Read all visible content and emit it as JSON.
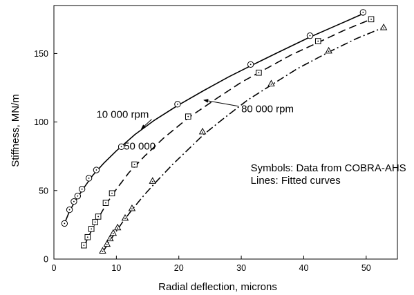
{
  "chart_data": {
    "type": "scatter",
    "title": "",
    "xlabel": "Radial deflection, microns",
    "ylabel": "Stiffness, MN/m",
    "xlim": [
      0,
      55
    ],
    "ylim": [
      0,
      185
    ],
    "xticks": [
      0,
      10,
      20,
      30,
      40,
      50
    ],
    "yticks": [
      0,
      50,
      100,
      150
    ],
    "grid": false,
    "legend": "none",
    "series": [
      {
        "marker": "circle-dot",
        "line": "solid",
        "points": [
          [
            1.7,
            26
          ],
          [
            2.5,
            36
          ],
          [
            3.2,
            42
          ],
          [
            3.8,
            46
          ],
          [
            4.5,
            51
          ],
          [
            5.6,
            59
          ],
          [
            6.8,
            65
          ],
          [
            10.8,
            82
          ],
          [
            19.8,
            113
          ],
          [
            31.5,
            142
          ],
          [
            41.0,
            163
          ],
          [
            49.5,
            180
          ]
        ],
        "fit": [
          [
            1.7,
            26
          ],
          [
            2.5,
            35
          ],
          [
            3.5,
            43
          ],
          [
            4.8,
            52
          ],
          [
            6.2,
            61
          ],
          [
            8.0,
            70
          ],
          [
            10.0,
            79
          ],
          [
            13.0,
            91
          ],
          [
            16.0,
            101
          ],
          [
            19.8,
            112
          ],
          [
            24.0,
            123
          ],
          [
            28.0,
            133
          ],
          [
            31.5,
            141
          ],
          [
            36.0,
            151
          ],
          [
            41.0,
            162
          ],
          [
            45.0,
            170
          ],
          [
            49.5,
            179
          ]
        ]
      },
      {
        "marker": "square-dot",
        "line": "dashed",
        "points": [
          [
            4.8,
            10
          ],
          [
            5.4,
            16
          ],
          [
            6.0,
            22
          ],
          [
            6.6,
            27
          ],
          [
            7.1,
            31
          ],
          [
            8.3,
            41
          ],
          [
            9.3,
            48
          ],
          [
            12.9,
            69
          ],
          [
            21.5,
            104
          ],
          [
            32.8,
            136
          ],
          [
            42.3,
            159
          ],
          [
            50.8,
            175
          ]
        ],
        "fit": [
          [
            4.8,
            9
          ],
          [
            5.5,
            16
          ],
          [
            6.5,
            25
          ],
          [
            7.5,
            33
          ],
          [
            8.5,
            41
          ],
          [
            10.0,
            51
          ],
          [
            12.0,
            63
          ],
          [
            14.5,
            75
          ],
          [
            17.5,
            88
          ],
          [
            21.5,
            103
          ],
          [
            26.0,
            117
          ],
          [
            30.0,
            129
          ],
          [
            34.0,
            139
          ],
          [
            38.0,
            149
          ],
          [
            42.3,
            158
          ],
          [
            46.5,
            167
          ],
          [
            50.8,
            175
          ]
        ]
      },
      {
        "marker": "triangle-dot",
        "line": "dash-dot",
        "points": [
          [
            7.8,
            6
          ],
          [
            8.5,
            11
          ],
          [
            9.0,
            15
          ],
          [
            9.5,
            19
          ],
          [
            10.2,
            23
          ],
          [
            11.4,
            30
          ],
          [
            12.5,
            37
          ],
          [
            15.8,
            57
          ],
          [
            23.8,
            93
          ],
          [
            34.8,
            128
          ],
          [
            44.0,
            152
          ],
          [
            52.8,
            169
          ]
        ],
        "fit": [
          [
            7.8,
            5
          ],
          [
            8.5,
            10
          ],
          [
            9.5,
            17
          ],
          [
            11.0,
            27
          ],
          [
            12.5,
            36
          ],
          [
            14.5,
            47
          ],
          [
            16.5,
            57
          ],
          [
            19.0,
            69
          ],
          [
            21.5,
            80
          ],
          [
            24.0,
            91
          ],
          [
            27.0,
            102
          ],
          [
            31.0,
            116
          ],
          [
            34.8,
            127
          ],
          [
            39.0,
            139
          ],
          [
            44.0,
            151
          ],
          [
            48.5,
            161
          ],
          [
            52.8,
            169
          ]
        ]
      }
    ],
    "annotations": [
      {
        "text": "10 000 rpm",
        "x": 6.8,
        "y": 103,
        "arrow_to": [
          14.0,
          95
        ]
      },
      {
        "text": "50 000",
        "x": 11.2,
        "y": 80
      },
      {
        "text": "80 000 rpm",
        "x": 30.0,
        "y": 107,
        "arrow_to": [
          24.0,
          116
        ]
      },
      {
        "text": "Symbols: Data from COBRA-AHS",
        "x": 31.5,
        "y": 64
      },
      {
        "text": "Lines: Fitted curves",
        "x": 31.5,
        "y": 55
      }
    ]
  }
}
